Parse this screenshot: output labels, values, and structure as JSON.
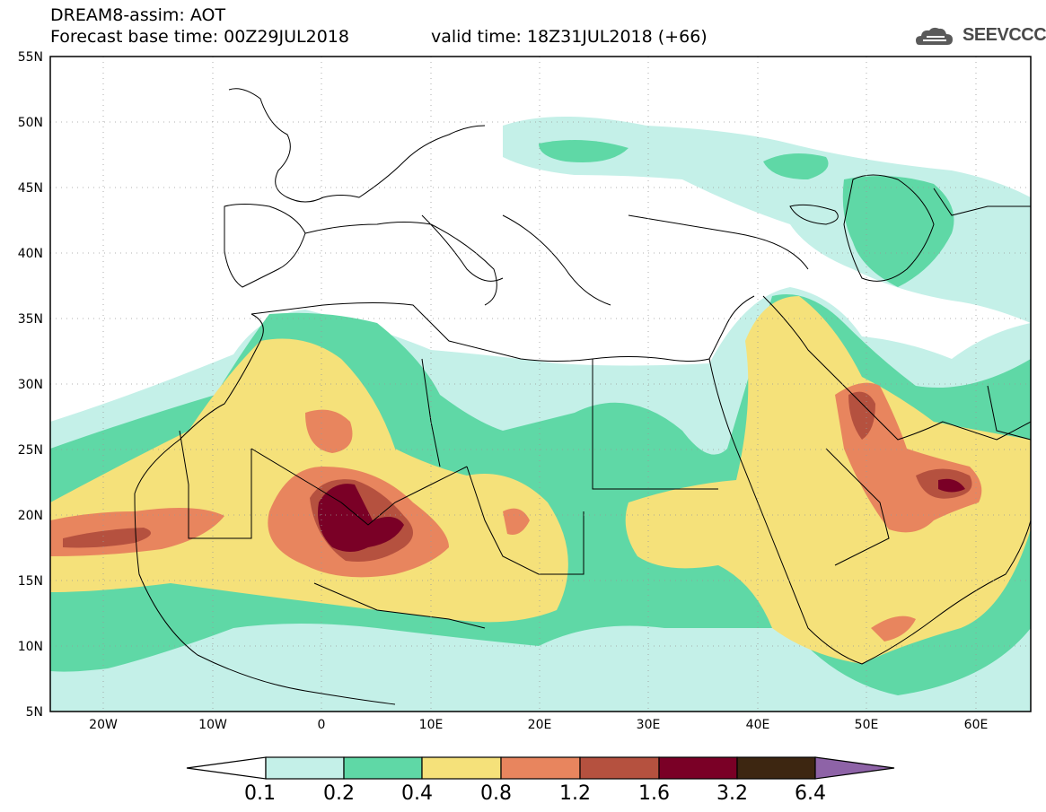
{
  "header": {
    "title": "DREAM8-assim: AOT",
    "base_time": "Forecast base time: 00Z29JUL2018",
    "valid_time": "valid time: 18Z31JUL2018 (+66)"
  },
  "logo": {
    "text": "SEEVCCC",
    "icon": "cloud-icon"
  },
  "map": {
    "lat_labels": [
      "55N",
      "50N",
      "45N",
      "40N",
      "35N",
      "30N",
      "25N",
      "20N",
      "15N",
      "10N",
      "5N"
    ],
    "lon_labels": [
      "20W",
      "10W",
      "0",
      "10E",
      "20E",
      "30E",
      "40E",
      "50E",
      "60E"
    ],
    "lon_range": [
      -25,
      65
    ],
    "lat_range": [
      5,
      55
    ]
  },
  "colorbar": {
    "labels": [
      "0.1",
      "0.2",
      "0.4",
      "0.8",
      "1.2",
      "1.6",
      "3.2",
      "6.4"
    ],
    "colors": [
      "#c4f0e8",
      "#5fd8a6",
      "#f5e17a",
      "#e8855e",
      "#b5513f",
      "#7a0026",
      "#3d2611",
      "#8e63a7"
    ]
  }
}
